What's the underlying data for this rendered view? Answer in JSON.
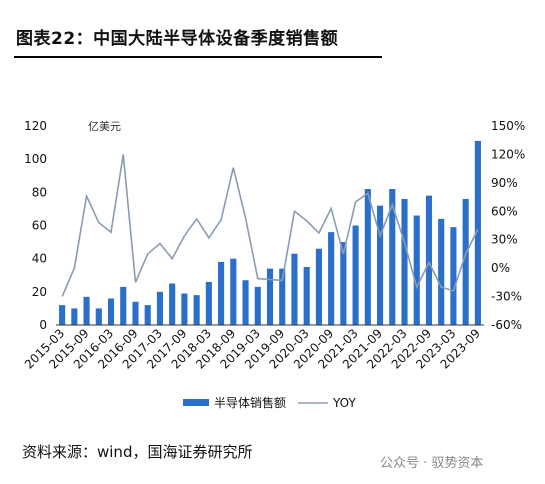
{
  "title": "图表22：中国大陆半导体设备季度销售额",
  "source": "资料来源：wind，国海证券研究所",
  "watermark": "公众号 · 驭势资本",
  "chart_data": {
    "type": "bar+line",
    "unit_label": "亿美元",
    "bar_color": "#2a6fc9",
    "line_color": "#8a9bb4",
    "x_tick_labels": [
      "2015-03",
      "2015-09",
      "2016-03",
      "2016-09",
      "2017-03",
      "2017-09",
      "2018-03",
      "2018-09",
      "2019-03",
      "2019-09",
      "2020-03",
      "2020-09",
      "2021-03",
      "2021-09",
      "2022-03",
      "2022-09",
      "2023-03",
      "2023-09"
    ],
    "categories": [
      "2015-03",
      "2015-06",
      "2015-09",
      "2015-12",
      "2016-03",
      "2016-06",
      "2016-09",
      "2016-12",
      "2017-03",
      "2017-06",
      "2017-09",
      "2017-12",
      "2018-03",
      "2018-06",
      "2018-09",
      "2018-12",
      "2019-03",
      "2019-06",
      "2019-09",
      "2019-12",
      "2020-03",
      "2020-06",
      "2020-09",
      "2020-12",
      "2021-03",
      "2021-06",
      "2021-09",
      "2021-12",
      "2022-03",
      "2022-06",
      "2022-09",
      "2022-12",
      "2023-03",
      "2023-06",
      "2023-09"
    ],
    "series": [
      {
        "name": "半导体销售额",
        "axis": "left",
        "values": [
          12,
          10,
          17,
          10,
          16,
          23,
          14,
          12,
          20,
          25,
          19,
          18,
          26,
          38,
          40,
          27,
          23,
          34,
          34,
          43,
          35,
          46,
          56,
          50,
          60,
          82,
          72,
          82,
          76,
          66,
          78,
          64,
          59,
          76,
          111
        ]
      },
      {
        "name": "YOY",
        "axis": "right",
        "values": [
          -30,
          0,
          76,
          48,
          38,
          120,
          -15,
          15,
          26,
          10,
          34,
          52,
          32,
          51,
          106,
          53,
          -11,
          -12,
          -13,
          60,
          50,
          37,
          63,
          15,
          70,
          79,
          34,
          67,
          27,
          -20,
          6,
          -20,
          -24,
          15,
          41
        ]
      }
    ],
    "y_left": {
      "min": 0,
      "max": 120,
      "ticks": [
        "0",
        "20",
        "40",
        "60",
        "80",
        "100",
        "120"
      ]
    },
    "y_right": {
      "min": -60,
      "max": 150,
      "ticks": [
        "-60%",
        "-30%",
        "0%",
        "30%",
        "60%",
        "90%",
        "120%",
        "150%"
      ]
    },
    "legend": {
      "position": "bottom",
      "items": [
        "半导体销售额",
        "YOY"
      ]
    }
  }
}
